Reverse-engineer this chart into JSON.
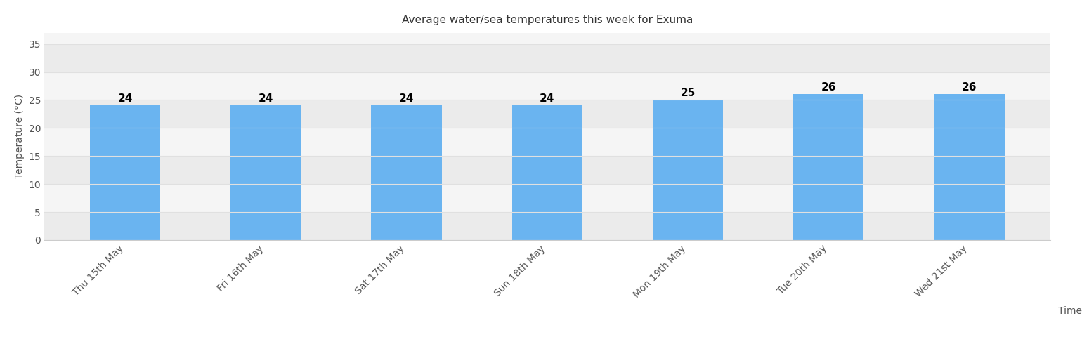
{
  "title": "Average water/sea temperatures this week for Exuma",
  "categories": [
    "Thu 15th May",
    "Fri 16th May",
    "Sat 17th May",
    "Sun 18th May",
    "Mon 19th May",
    "Tue 20th May",
    "Wed 21st May"
  ],
  "values": [
    24,
    24,
    24,
    24,
    25,
    26,
    26
  ],
  "bar_color": "#6ab4f0",
  "ylabel": "Temperature (°C)",
  "xlabel": "Time",
  "ylim": [
    0,
    37
  ],
  "yticks": [
    0,
    5,
    10,
    15,
    20,
    25,
    30,
    35
  ],
  "background_color": "#ffffff",
  "plot_bg_color": "#ffffff",
  "title_fontsize": 11,
  "label_fontsize": 10,
  "tick_fontsize": 10,
  "annotation_fontsize": 11,
  "grid_color": "#e0e0e0",
  "band_color": "#ebebeb",
  "band_color2": "#f5f5f5"
}
